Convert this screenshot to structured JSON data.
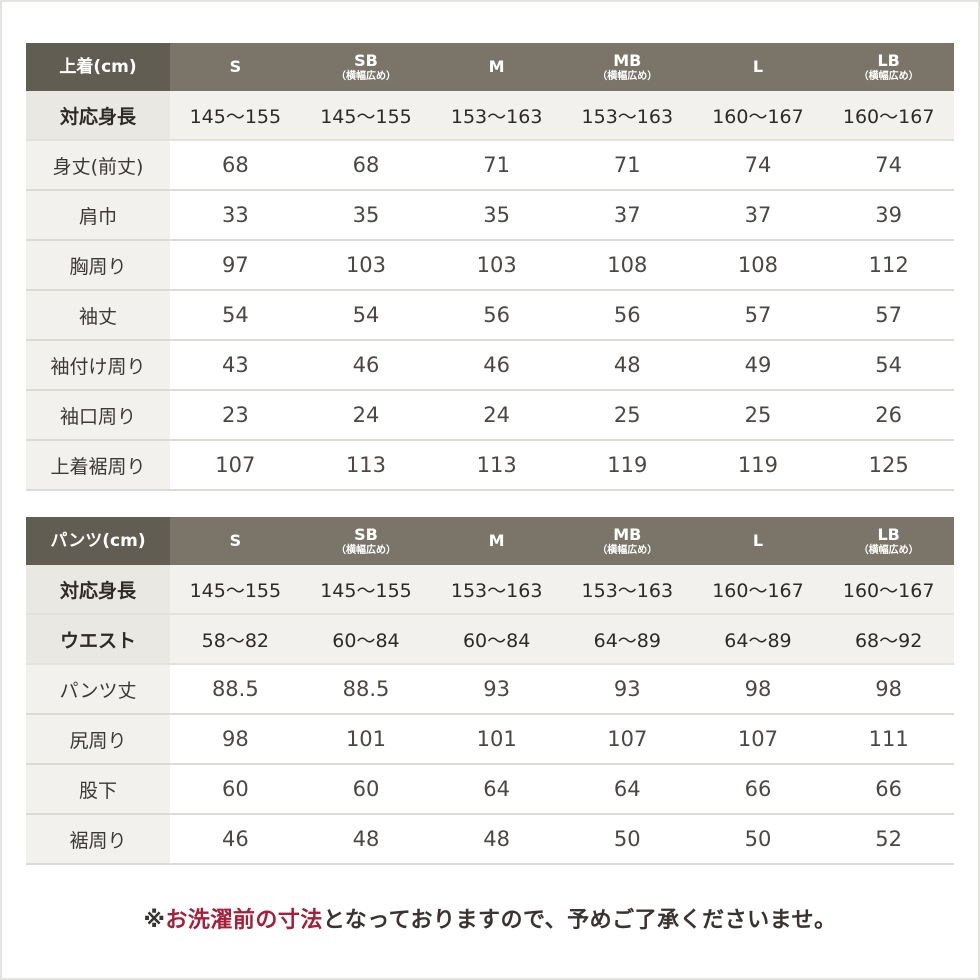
{
  "colors": {
    "header_bg": "#7a7568",
    "header_label_bg": "#625d52",
    "accent_red": "#a3203a",
    "text": "#4b4744"
  },
  "sizes": [
    {
      "name": "S",
      "sub": ""
    },
    {
      "name": "SB",
      "sub": "（横幅広め）"
    },
    {
      "name": "M",
      "sub": ""
    },
    {
      "name": "MB",
      "sub": "（横幅広め）"
    },
    {
      "name": "L",
      "sub": ""
    },
    {
      "name": "LB",
      "sub": "（横幅広め）"
    }
  ],
  "jacket": {
    "title": "上着(cm)",
    "highlight_rows": [
      {
        "label": "対応身長",
        "values": [
          "145〜155",
          "145〜155",
          "153〜163",
          "153〜163",
          "160〜167",
          "160〜167"
        ]
      }
    ],
    "rows": [
      {
        "label": "身丈(前丈)",
        "values": [
          "68",
          "68",
          "71",
          "71",
          "74",
          "74"
        ]
      },
      {
        "label": "肩巾",
        "values": [
          "33",
          "35",
          "35",
          "37",
          "37",
          "39"
        ]
      },
      {
        "label": "胸周り",
        "values": [
          "97",
          "103",
          "103",
          "108",
          "108",
          "112"
        ]
      },
      {
        "label": "袖丈",
        "values": [
          "54",
          "54",
          "56",
          "56",
          "57",
          "57"
        ]
      },
      {
        "label": "袖付け周り",
        "values": [
          "43",
          "46",
          "46",
          "48",
          "49",
          "54"
        ]
      },
      {
        "label": "袖口周り",
        "values": [
          "23",
          "24",
          "24",
          "25",
          "25",
          "26"
        ]
      },
      {
        "label": "上着裾周り",
        "values": [
          "107",
          "113",
          "113",
          "119",
          "119",
          "125"
        ]
      }
    ]
  },
  "pants": {
    "title": "パンツ(cm)",
    "highlight_rows": [
      {
        "label": "対応身長",
        "values": [
          "145〜155",
          "145〜155",
          "153〜163",
          "153〜163",
          "160〜167",
          "160〜167"
        ]
      },
      {
        "label": "ウエスト",
        "values": [
          "58〜82",
          "60〜84",
          "60〜84",
          "64〜89",
          "64〜89",
          "68〜92"
        ]
      }
    ],
    "rows": [
      {
        "label": "パンツ丈",
        "values": [
          "88.5",
          "88.5",
          "93",
          "93",
          "98",
          "98"
        ]
      },
      {
        "label": "尻周り",
        "values": [
          "98",
          "101",
          "101",
          "107",
          "107",
          "111"
        ]
      },
      {
        "label": "股下",
        "values": [
          "60",
          "60",
          "64",
          "64",
          "66",
          "66"
        ]
      },
      {
        "label": "裾周り",
        "values": [
          "46",
          "48",
          "48",
          "50",
          "50",
          "52"
        ]
      }
    ]
  },
  "note": {
    "prefix": "※",
    "emphasis": "お洗濯前の寸法",
    "rest": "となっておりますので、予めご了承くださいませ。"
  }
}
